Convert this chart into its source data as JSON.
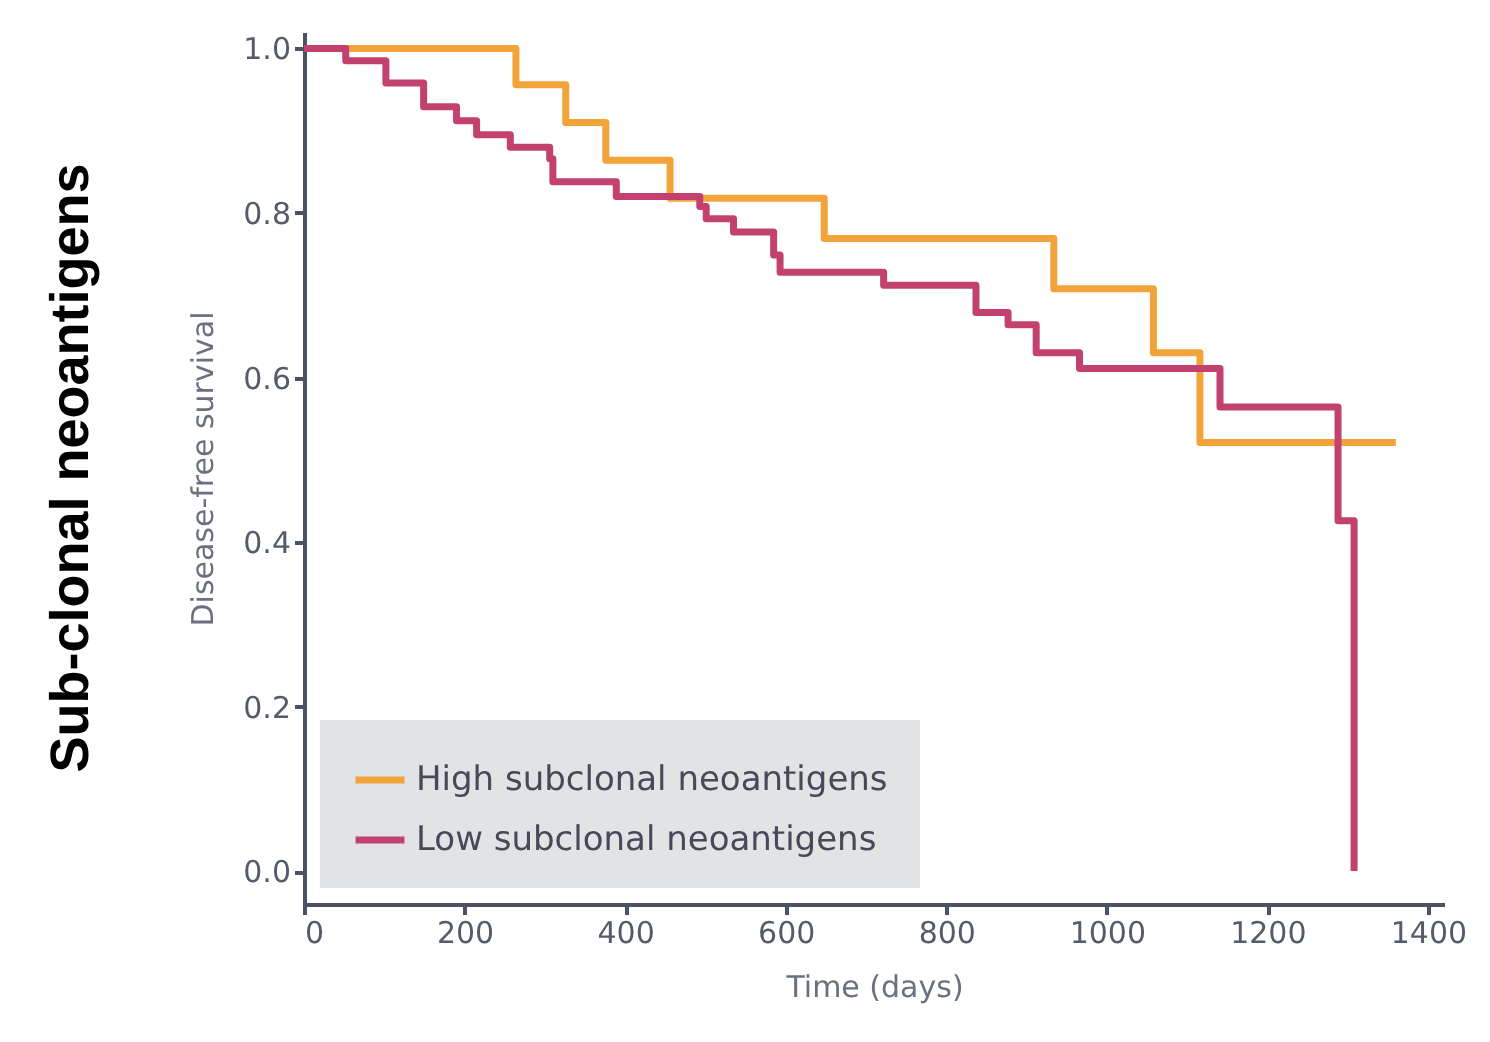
{
  "chart_data": {
    "type": "step",
    "title": "Sub-clonal neoantigens",
    "xlabel": "Time (days)",
    "ylabel": "Disease-free survival",
    "xlim": [
      0,
      1420
    ],
    "ylim": [
      -0.04,
      1.02
    ],
    "xticks": [
      0,
      200,
      400,
      600,
      800,
      1000,
      1200,
      1400
    ],
    "yticks": [
      {
        "value": 0,
        "label": "0.0"
      },
      0.2,
      0.4,
      0.6,
      0.8,
      {
        "value": 1,
        "label": "1.0"
      }
    ],
    "grid": false,
    "legend": "bottom left",
    "line_style": "solid",
    "marker": "none",
    "series": [
      {
        "name": "High subclonal neoantigens",
        "color": "#f2a43a",
        "x": [
          0,
          264,
          326,
          376,
          456,
          648,
          934,
          1058,
          1116,
          1360
        ],
        "values": [
          1.0,
          0.956,
          0.91,
          0.864,
          0.818,
          0.769,
          0.708,
          0.63,
          0.521,
          0.521
        ]
      },
      {
        "name": "Low subclonal neoantigens",
        "color": "#c2416e",
        "x": [
          0,
          52,
          102,
          149,
          190,
          215,
          257,
          306,
          310,
          389,
          493,
          501,
          535,
          585,
          593,
          722,
          837,
          877,
          912,
          966,
          1141,
          1288,
          1308
        ],
        "values": [
          1.0,
          0.985,
          0.958,
          0.929,
          0.912,
          0.895,
          0.88,
          0.866,
          0.838,
          0.82,
          0.808,
          0.793,
          0.777,
          0.749,
          0.728,
          0.712,
          0.679,
          0.664,
          0.63,
          0.611,
          0.564,
          0.426,
          0.0
        ]
      }
    ]
  }
}
